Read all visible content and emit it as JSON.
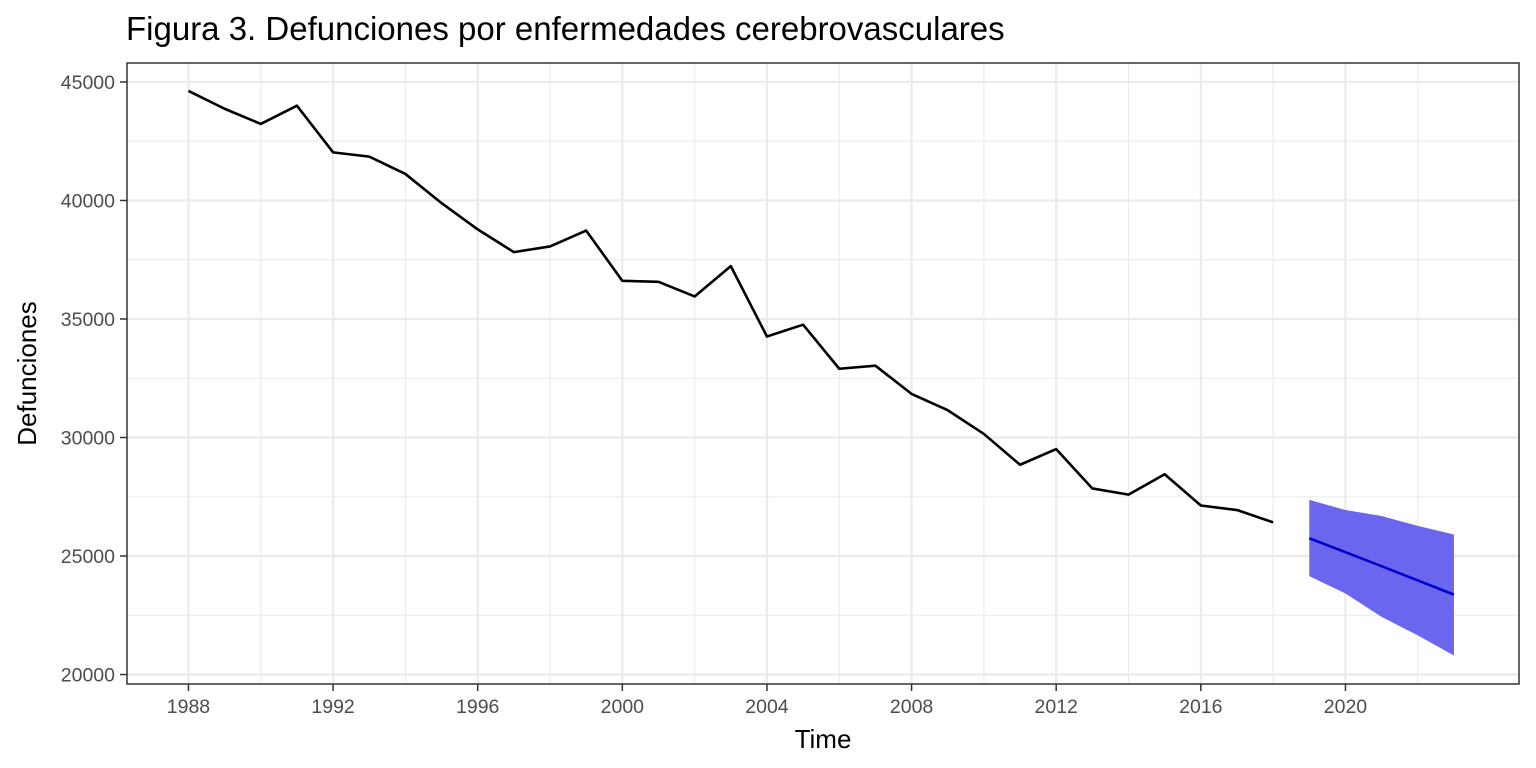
{
  "chart_data": {
    "type": "line",
    "title": "Figura 3. Defunciones por enfermedades cerebrovasculares",
    "xlabel": "Time",
    "ylabel": "Defunciones",
    "xlim": [
      1986.3,
      2024.8
    ],
    "ylim": [
      19600,
      45800
    ],
    "x_ticks": [
      1988,
      1992,
      1996,
      2000,
      2004,
      2008,
      2012,
      2016,
      2020
    ],
    "y_ticks": [
      20000,
      25000,
      30000,
      35000,
      40000,
      45000
    ],
    "grid": true,
    "legend": "none",
    "series": [
      {
        "x": [
          1988,
          1989,
          1990,
          1991,
          1992,
          1993,
          1994,
          1995,
          1996,
          1997,
          1998,
          1999,
          2000,
          2001,
          2002,
          2003,
          2004,
          2005,
          2006,
          2007,
          2008,
          2009,
          2010,
          2011,
          2012,
          2013,
          2014,
          2015,
          2016,
          2017,
          2018
        ],
        "values": [
          44620,
          43870,
          43230,
          44000,
          42030,
          41850,
          41120,
          39890,
          38780,
          37820,
          38060,
          38730,
          36610,
          36570,
          35950,
          37230,
          34260,
          34760,
          32900,
          33030,
          31840,
          31150,
          30150,
          28850,
          29510,
          27850,
          27590,
          28450,
          27130,
          26940,
          26420
        ],
        "color": "#000000"
      },
      {
        "x": [
          2019,
          2020,
          2021,
          2022,
          2023
        ],
        "values": [
          25750,
          25160,
          24570,
          23970,
          23370
        ],
        "color": "#0000cc"
      }
    ],
    "forecast_interval": {
      "x": [
        2019,
        2020,
        2021,
        2022,
        2023
      ],
      "upper": [
        27370,
        26940,
        26690,
        26270,
        25910
      ],
      "lower": [
        24150,
        23420,
        22430,
        21650,
        20800
      ],
      "color": "#6b66ee"
    }
  }
}
